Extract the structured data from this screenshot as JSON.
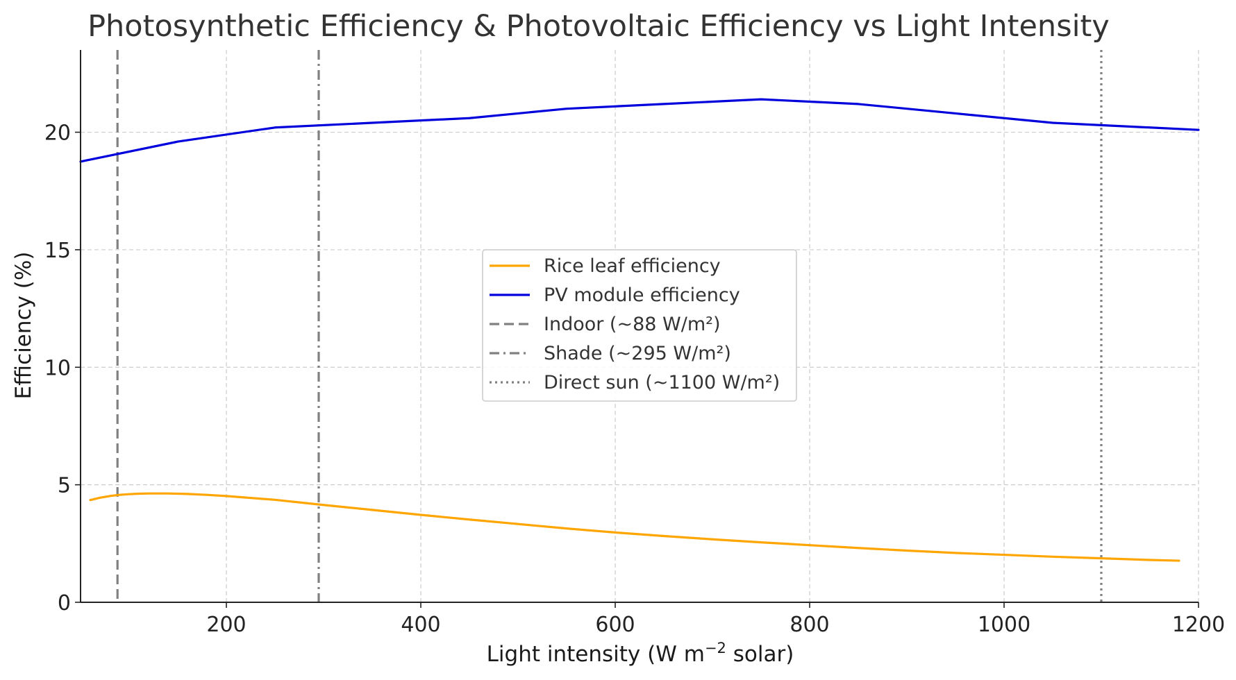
{
  "chart_data": {
    "type": "line",
    "title": "Photosynthetic Efficiency & Photovoltaic Efficiency vs Light Intensity",
    "xlabel": "Light intensity (W m",
    "xlabel_sup": "−2",
    "xlabel_suffix": " solar)",
    "ylabel": "Efficiency (%)",
    "xlim": [
      50,
      1200
    ],
    "ylim": [
      0,
      23.5
    ],
    "xticks": [
      200,
      400,
      600,
      800,
      1000,
      1200
    ],
    "yticks": [
      0,
      5,
      10,
      15,
      20
    ],
    "grid": true,
    "legend_position": "center",
    "colors": {
      "rice": "#FFA500",
      "pv": "#0000DD",
      "ref": "#808080",
      "grid": "#cccccc",
      "axis": "#222222"
    },
    "series": [
      {
        "name": "Rice leaf efficiency",
        "color": "#FFA500",
        "style": "solid",
        "x": [
          60,
          70,
          80,
          90,
          100,
          110,
          120,
          130,
          140,
          150,
          160,
          180,
          200,
          250,
          300,
          350,
          400,
          450,
          500,
          550,
          600,
          650,
          700,
          750,
          800,
          850,
          900,
          950,
          1000,
          1050,
          1100,
          1150,
          1180
        ],
        "y": [
          4.35,
          4.45,
          4.52,
          4.57,
          4.6,
          4.62,
          4.63,
          4.63,
          4.63,
          4.62,
          4.61,
          4.57,
          4.52,
          4.36,
          4.14,
          3.93,
          3.72,
          3.52,
          3.33,
          3.14,
          2.97,
          2.82,
          2.68,
          2.55,
          2.43,
          2.31,
          2.2,
          2.1,
          2.02,
          1.94,
          1.87,
          1.8,
          1.77
        ]
      },
      {
        "name": "PV module efficiency",
        "color": "#0000DD",
        "style": "solid",
        "x": [
          50,
          150,
          250,
          350,
          450,
          550,
          650,
          750,
          850,
          950,
          1050,
          1200
        ],
        "y": [
          18.75,
          19.6,
          20.2,
          20.4,
          20.6,
          21.0,
          21.2,
          21.4,
          21.2,
          20.8,
          20.4,
          20.1
        ]
      }
    ],
    "reference_lines": [
      {
        "name": "Indoor (~88 W/m²)",
        "x": 88,
        "style": "dashed",
        "color": "#808080"
      },
      {
        "name": "Shade (~295 W/m²)",
        "x": 295,
        "style": "dashdot",
        "color": "#808080"
      },
      {
        "name": "Direct sun (~1100 W/m²)",
        "x": 1100,
        "style": "dotted",
        "color": "#808080"
      }
    ]
  }
}
